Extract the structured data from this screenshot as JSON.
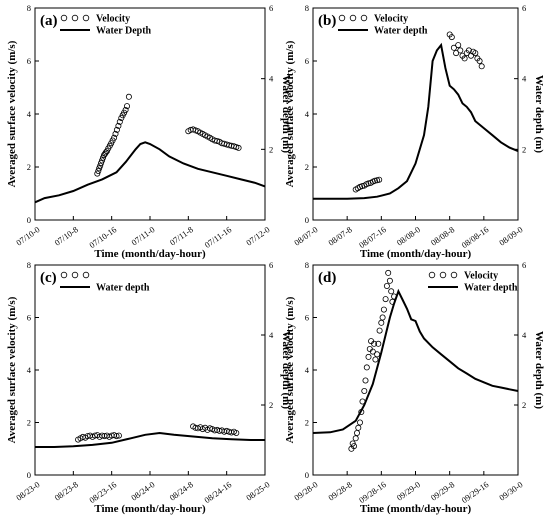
{
  "chart_data": [
    {
      "type": "scatter",
      "panel_label": "(a)",
      "xlabel": "Time (month/day-hour)",
      "ylabel": "Averaged surface velocity (m/s)",
      "y2label": "Water depth (m)",
      "x_tick_labels": [
        "07/10-0",
        "07/10-8",
        "07/10-16",
        "07/11-0",
        "07/11-8",
        "07/11-16",
        "07/12-0"
      ],
      "x_hours": [
        0,
        8,
        16,
        24,
        32,
        40,
        48
      ],
      "ylim": [
        0,
        8
      ],
      "y_ticks": [
        0,
        2,
        4,
        6,
        8
      ],
      "y2lim": [
        0,
        6
      ],
      "y2_ticks": [
        2,
        4,
        6
      ],
      "legend_position": "top-left",
      "series": [
        {
          "name": "Velocity",
          "kind": "scatter",
          "axis": "left",
          "points": [
            [
              13,
              1.75
            ],
            [
              13.2,
              1.85
            ],
            [
              13.4,
              1.95
            ],
            [
              13.6,
              2.05
            ],
            [
              13.8,
              2.15
            ],
            [
              14,
              2.25
            ],
            [
              14.2,
              2.35
            ],
            [
              14.4,
              2.45
            ],
            [
              14.6,
              2.5
            ],
            [
              14.8,
              2.55
            ],
            [
              15,
              2.6
            ],
            [
              15.3,
              2.7
            ],
            [
              15.6,
              2.8
            ],
            [
              15.9,
              2.9
            ],
            [
              16.2,
              3.0
            ],
            [
              16.5,
              3.1
            ],
            [
              16.8,
              3.25
            ],
            [
              17.1,
              3.4
            ],
            [
              17.4,
              3.55
            ],
            [
              17.7,
              3.7
            ],
            [
              18,
              3.85
            ],
            [
              18.3,
              3.95
            ],
            [
              18.6,
              4.05
            ],
            [
              18.9,
              4.15
            ],
            [
              19.2,
              4.3
            ],
            [
              19.6,
              4.65
            ],
            [
              32,
              3.35
            ],
            [
              32.5,
              3.4
            ],
            [
              33,
              3.42
            ],
            [
              33.5,
              3.38
            ],
            [
              34,
              3.35
            ],
            [
              34.5,
              3.3
            ],
            [
              35,
              3.25
            ],
            [
              35.5,
              3.2
            ],
            [
              36,
              3.15
            ],
            [
              36.5,
              3.1
            ],
            [
              37,
              3.05
            ],
            [
              37.5,
              3.0
            ],
            [
              38,
              2.98
            ],
            [
              38.5,
              2.95
            ],
            [
              39,
              2.9
            ],
            [
              39.5,
              2.88
            ],
            [
              40,
              2.85
            ],
            [
              40.5,
              2.82
            ],
            [
              41,
              2.8
            ],
            [
              41.5,
              2.78
            ],
            [
              42,
              2.75
            ],
            [
              42.5,
              2.72
            ]
          ]
        },
        {
          "name": "Water Depth",
          "kind": "line",
          "axis": "right",
          "points": [
            [
              0,
              0.5
            ],
            [
              2,
              0.62
            ],
            [
              5,
              0.7
            ],
            [
              8,
              0.82
            ],
            [
              11,
              1.0
            ],
            [
              14,
              1.15
            ],
            [
              17,
              1.35
            ],
            [
              19,
              1.65
            ],
            [
              21,
              2.0
            ],
            [
              22,
              2.15
            ],
            [
              23,
              2.2
            ],
            [
              24,
              2.15
            ],
            [
              26,
              2.0
            ],
            [
              28,
              1.8
            ],
            [
              31,
              1.6
            ],
            [
              34,
              1.45
            ],
            [
              37,
              1.35
            ],
            [
              40,
              1.25
            ],
            [
              43,
              1.15
            ],
            [
              46,
              1.05
            ],
            [
              48,
              0.95
            ]
          ]
        }
      ]
    },
    {
      "type": "scatter",
      "panel_label": "(b)",
      "xlabel": "Time (month/day-hour)",
      "ylabel": "Averaged surface velocity (m/s)",
      "y2label": "Water depth (m)",
      "x_tick_labels": [
        "08/07-0",
        "08/07-8",
        "08/07-16",
        "08/08-0",
        "08/08-8",
        "08/08-16",
        "08/09-0"
      ],
      "x_hours": [
        0,
        8,
        16,
        24,
        32,
        40,
        48
      ],
      "ylim": [
        0,
        8
      ],
      "y_ticks": [
        0,
        2,
        4,
        6,
        8
      ],
      "y2lim": [
        0,
        6
      ],
      "y2_ticks": [
        2,
        4,
        6
      ],
      "legend_position": "top-left",
      "series": [
        {
          "name": "Velocity",
          "kind": "scatter",
          "axis": "left",
          "points": [
            [
              10,
              1.15
            ],
            [
              10.5,
              1.2
            ],
            [
              11,
              1.25
            ],
            [
              11.5,
              1.28
            ],
            [
              12,
              1.3
            ],
            [
              12.5,
              1.35
            ],
            [
              13,
              1.38
            ],
            [
              13.5,
              1.4
            ],
            [
              14,
              1.45
            ],
            [
              14.5,
              1.48
            ],
            [
              15,
              1.5
            ],
            [
              15.5,
              1.52
            ],
            [
              32,
              7.0
            ],
            [
              32.5,
              6.9
            ],
            [
              33,
              6.5
            ],
            [
              33.5,
              6.3
            ],
            [
              34,
              6.6
            ],
            [
              34.5,
              6.4
            ],
            [
              35,
              6.2
            ],
            [
              35.5,
              6.1
            ],
            [
              36,
              6.3
            ],
            [
              36.5,
              6.4
            ],
            [
              37,
              6.2
            ],
            [
              37.5,
              6.35
            ],
            [
              38,
              6.3
            ],
            [
              38.5,
              6.1
            ],
            [
              39,
              6.0
            ],
            [
              39.5,
              5.8
            ]
          ]
        },
        {
          "name": "Water depth",
          "kind": "line",
          "axis": "right",
          "points": [
            [
              0,
              0.6
            ],
            [
              4,
              0.6
            ],
            [
              8,
              0.6
            ],
            [
              12,
              0.62
            ],
            [
              15,
              0.66
            ],
            [
              18,
              0.75
            ],
            [
              20,
              0.9
            ],
            [
              22,
              1.1
            ],
            [
              24,
              1.6
            ],
            [
              26,
              2.4
            ],
            [
              27,
              3.2
            ],
            [
              28,
              4.5
            ],
            [
              29,
              4.8
            ],
            [
              30,
              4.95
            ],
            [
              31,
              4.3
            ],
            [
              32,
              3.8
            ],
            [
              33,
              3.7
            ],
            [
              34,
              3.55
            ],
            [
              35,
              3.3
            ],
            [
              36,
              3.2
            ],
            [
              37,
              3.05
            ],
            [
              38,
              2.8
            ],
            [
              40,
              2.6
            ],
            [
              42,
              2.4
            ],
            [
              44,
              2.2
            ],
            [
              46,
              2.05
            ],
            [
              48,
              1.95
            ]
          ]
        }
      ]
    },
    {
      "type": "scatter",
      "panel_label": "(c)",
      "xlabel": "Time (month/day-hour)",
      "ylabel": "Averaged surface velocity (m/s)",
      "y2label": "Water depth (m)",
      "x_tick_labels": [
        "08/23-0",
        "08/23-8",
        "08/23-16",
        "08/24-0",
        "08/24-8",
        "08/24-16",
        "08/25-0"
      ],
      "x_hours": [
        0,
        8,
        16,
        24,
        32,
        40,
        48
      ],
      "ylim": [
        0,
        8
      ],
      "y_ticks": [
        0,
        2,
        4,
        6,
        8
      ],
      "y2lim": [
        0,
        6
      ],
      "y2_ticks": [
        2,
        4,
        6
      ],
      "legend_position": "top-left",
      "series": [
        {
          "name": "",
          "kind": "scatter",
          "axis": "left",
          "points": [
            [
              9,
              1.35
            ],
            [
              9.5,
              1.4
            ],
            [
              10,
              1.45
            ],
            [
              10.5,
              1.42
            ],
            [
              11,
              1.48
            ],
            [
              11.5,
              1.5
            ],
            [
              12,
              1.45
            ],
            [
              12.5,
              1.5
            ],
            [
              13,
              1.52
            ],
            [
              13.5,
              1.45
            ],
            [
              14,
              1.5
            ],
            [
              14.5,
              1.48
            ],
            [
              15,
              1.5
            ],
            [
              15.5,
              1.45
            ],
            [
              16,
              1.5
            ],
            [
              16.5,
              1.52
            ],
            [
              17,
              1.48
            ],
            [
              17.5,
              1.5
            ],
            [
              33,
              1.85
            ],
            [
              33.5,
              1.8
            ],
            [
              34,
              1.78
            ],
            [
              34.5,
              1.82
            ],
            [
              35,
              1.75
            ],
            [
              35.5,
              1.8
            ],
            [
              36,
              1.72
            ],
            [
              36.5,
              1.78
            ],
            [
              37,
              1.75
            ],
            [
              37.5,
              1.7
            ],
            [
              38,
              1.72
            ],
            [
              38.5,
              1.68
            ],
            [
              39,
              1.7
            ],
            [
              39.5,
              1.65
            ],
            [
              40,
              1.68
            ],
            [
              40.5,
              1.65
            ],
            [
              41,
              1.62
            ],
            [
              41.5,
              1.65
            ],
            [
              42,
              1.6
            ]
          ]
        },
        {
          "name": "Water depth",
          "kind": "line",
          "axis": "right",
          "points": [
            [
              0,
              0.8
            ],
            [
              4,
              0.8
            ],
            [
              8,
              0.82
            ],
            [
              12,
              0.86
            ],
            [
              16,
              0.92
            ],
            [
              20,
              1.05
            ],
            [
              23,
              1.15
            ],
            [
              26,
              1.2
            ],
            [
              29,
              1.15
            ],
            [
              33,
              1.1
            ],
            [
              37,
              1.05
            ],
            [
              41,
              1.02
            ],
            [
              45,
              1.0
            ],
            [
              48,
              1.0
            ]
          ]
        }
      ]
    },
    {
      "type": "scatter",
      "panel_label": "(d)",
      "xlabel": "Time (month/day-hour)",
      "ylabel": "Averaged surface velocity (m/s)",
      "y2label": "Water depth (m)",
      "x_tick_labels": [
        "09/28-0",
        "09/28-8",
        "09/28-16",
        "09/29-0",
        "09/29-8",
        "09/29-16",
        "09/30-0"
      ],
      "x_hours": [
        0,
        8,
        16,
        24,
        32,
        40,
        48
      ],
      "ylim": [
        0,
        8
      ],
      "y_ticks": [
        0,
        2,
        4,
        6,
        8
      ],
      "y2lim": [
        0,
        6
      ],
      "y2_ticks": [
        2,
        4,
        6
      ],
      "legend_position": "top-center",
      "series": [
        {
          "name": "Velocity",
          "kind": "scatter",
          "axis": "left",
          "points": [
            [
              9,
              1.0
            ],
            [
              9.3,
              1.2
            ],
            [
              9.6,
              1.1
            ],
            [
              10,
              1.4
            ],
            [
              10.3,
              1.6
            ],
            [
              10.6,
              1.8
            ],
            [
              11,
              2.0
            ],
            [
              11.3,
              2.4
            ],
            [
              11.6,
              2.8
            ],
            [
              12,
              3.2
            ],
            [
              12.3,
              3.6
            ],
            [
              12.6,
              4.1
            ],
            [
              13,
              4.5
            ],
            [
              13.3,
              4.8
            ],
            [
              13.6,
              5.1
            ],
            [
              14,
              4.7
            ],
            [
              14.3,
              5.0
            ],
            [
              14.6,
              4.4
            ],
            [
              15,
              4.6
            ],
            [
              15.3,
              5.0
            ],
            [
              15.6,
              5.5
            ],
            [
              16,
              5.8
            ],
            [
              16.3,
              6.0
            ],
            [
              16.6,
              6.3
            ],
            [
              17,
              6.7
            ],
            [
              17.3,
              7.2
            ],
            [
              17.6,
              7.7
            ],
            [
              18,
              7.4
            ],
            [
              18.3,
              7.0
            ],
            [
              18.6,
              6.6
            ],
            [
              19,
              6.8
            ]
          ]
        },
        {
          "name": "Water depth",
          "kind": "line",
          "axis": "right",
          "points": [
            [
              0,
              1.2
            ],
            [
              4,
              1.22
            ],
            [
              7,
              1.3
            ],
            [
              10,
              1.55
            ],
            [
              12,
              2.0
            ],
            [
              14,
              2.6
            ],
            [
              16,
              3.5
            ],
            [
              18,
              4.5
            ],
            [
              19,
              4.9
            ],
            [
              20,
              5.25
            ],
            [
              21,
              5.0
            ],
            [
              22,
              4.75
            ],
            [
              23,
              4.45
            ],
            [
              24,
              4.4
            ],
            [
              25,
              4.1
            ],
            [
              26,
              3.9
            ],
            [
              28,
              3.65
            ],
            [
              30,
              3.45
            ],
            [
              32,
              3.25
            ],
            [
              34,
              3.05
            ],
            [
              36,
              2.9
            ],
            [
              38,
              2.75
            ],
            [
              40,
              2.65
            ],
            [
              42,
              2.55
            ],
            [
              44,
              2.5
            ],
            [
              46,
              2.45
            ],
            [
              48,
              2.4
            ]
          ]
        }
      ]
    }
  ]
}
